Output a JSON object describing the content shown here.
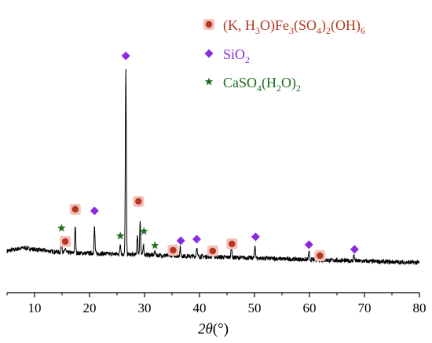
{
  "chart_data": {
    "type": "line",
    "xlabel": {
      "var": "2θ",
      "unit": "(°)"
    },
    "xlim": [
      5,
      80
    ],
    "x_ticks": [
      10,
      20,
      30,
      40,
      50,
      60,
      70,
      80
    ],
    "y_axis_visible": false,
    "grid": false,
    "legend_position": "top-right",
    "colors": {
      "line": "#000000",
      "circle": "#b5371f",
      "circle_halo": "#f3c2bb",
      "diamond": "#8a2be2",
      "star": "#1e6b1e"
    },
    "legend": [
      {
        "marker": "circle",
        "color": "#b5371f",
        "parts": [
          [
            "n",
            "(K, H"
          ],
          [
            "sub",
            "3"
          ],
          [
            "n",
            "O)Fe"
          ],
          [
            "sub",
            "3"
          ],
          [
            "n",
            "(SO"
          ],
          [
            "sub",
            "4"
          ],
          [
            "n",
            ")"
          ],
          [
            "sub",
            "2"
          ],
          [
            "n",
            "(OH)"
          ],
          [
            "sub",
            "6"
          ]
        ]
      },
      {
        "marker": "diamond",
        "color": "#8a2be2",
        "parts": [
          [
            "n",
            "SiO"
          ],
          [
            "sub",
            "2"
          ]
        ]
      },
      {
        "marker": "star",
        "color": "#1e6b1e",
        "parts": [
          [
            "n",
            "CaSO"
          ],
          [
            "sub",
            "4"
          ],
          [
            "n",
            "(H"
          ],
          [
            "sub",
            "2"
          ],
          [
            "n",
            "O)"
          ],
          [
            "sub",
            "2"
          ]
        ]
      }
    ],
    "pattern": {
      "baseline": [
        [
          5,
          18
        ],
        [
          8,
          22
        ],
        [
          10,
          20
        ],
        [
          15,
          16
        ],
        [
          20,
          15
        ],
        [
          25,
          14
        ],
        [
          30,
          13
        ],
        [
          40,
          11
        ],
        [
          50,
          9
        ],
        [
          60,
          7
        ],
        [
          70,
          5
        ],
        [
          80,
          3
        ]
      ],
      "peaks": [
        {
          "x": 14.9,
          "h": 22
        },
        {
          "x": 15.6,
          "h": 6
        },
        {
          "x": 17.4,
          "h": 34
        },
        {
          "x": 20.9,
          "h": 33
        },
        {
          "x": 25.6,
          "h": 14
        },
        {
          "x": 26.6,
          "h": 235
        },
        {
          "x": 28.7,
          "h": 25
        },
        {
          "x": 29.2,
          "h": 42
        },
        {
          "x": 29.8,
          "h": 14
        },
        {
          "x": 31.9,
          "h": 6
        },
        {
          "x": 35.2,
          "h": 5
        },
        {
          "x": 36.5,
          "h": 10
        },
        {
          "x": 39.5,
          "h": 12
        },
        {
          "x": 42.4,
          "h": 6
        },
        {
          "x": 45.8,
          "h": 15
        },
        {
          "x": 50.1,
          "h": 16
        },
        {
          "x": 59.9,
          "h": 10
        },
        {
          "x": 61.5,
          "h": 6
        },
        {
          "x": 68.1,
          "h": 8
        }
      ]
    },
    "markers": [
      {
        "type": "star",
        "x": 14.9,
        "y": 47
      },
      {
        "type": "circle",
        "x": 15.6,
        "y": 30
      },
      {
        "type": "circle",
        "x": 17.4,
        "y": 71
      },
      {
        "type": "diamond",
        "x": 20.9,
        "y": 69
      },
      {
        "type": "star",
        "x": 25.6,
        "y": 37
      },
      {
        "type": "diamond",
        "x": 26.6,
        "y": 266
      },
      {
        "type": "circle",
        "x": 28.9,
        "y": 81
      },
      {
        "type": "star",
        "x": 29.9,
        "y": 43
      },
      {
        "type": "star",
        "x": 31.9,
        "y": 25
      },
      {
        "type": "circle",
        "x": 35.2,
        "y": 19
      },
      {
        "type": "diamond",
        "x": 36.6,
        "y": 31
      },
      {
        "type": "diamond",
        "x": 39.5,
        "y": 33
      },
      {
        "type": "circle",
        "x": 42.4,
        "y": 18
      },
      {
        "type": "circle",
        "x": 45.9,
        "y": 27
      },
      {
        "type": "diamond",
        "x": 50.2,
        "y": 36
      },
      {
        "type": "diamond",
        "x": 59.9,
        "y": 26
      },
      {
        "type": "circle",
        "x": 61.9,
        "y": 12
      },
      {
        "type": "diamond",
        "x": 68.2,
        "y": 20
      }
    ]
  }
}
